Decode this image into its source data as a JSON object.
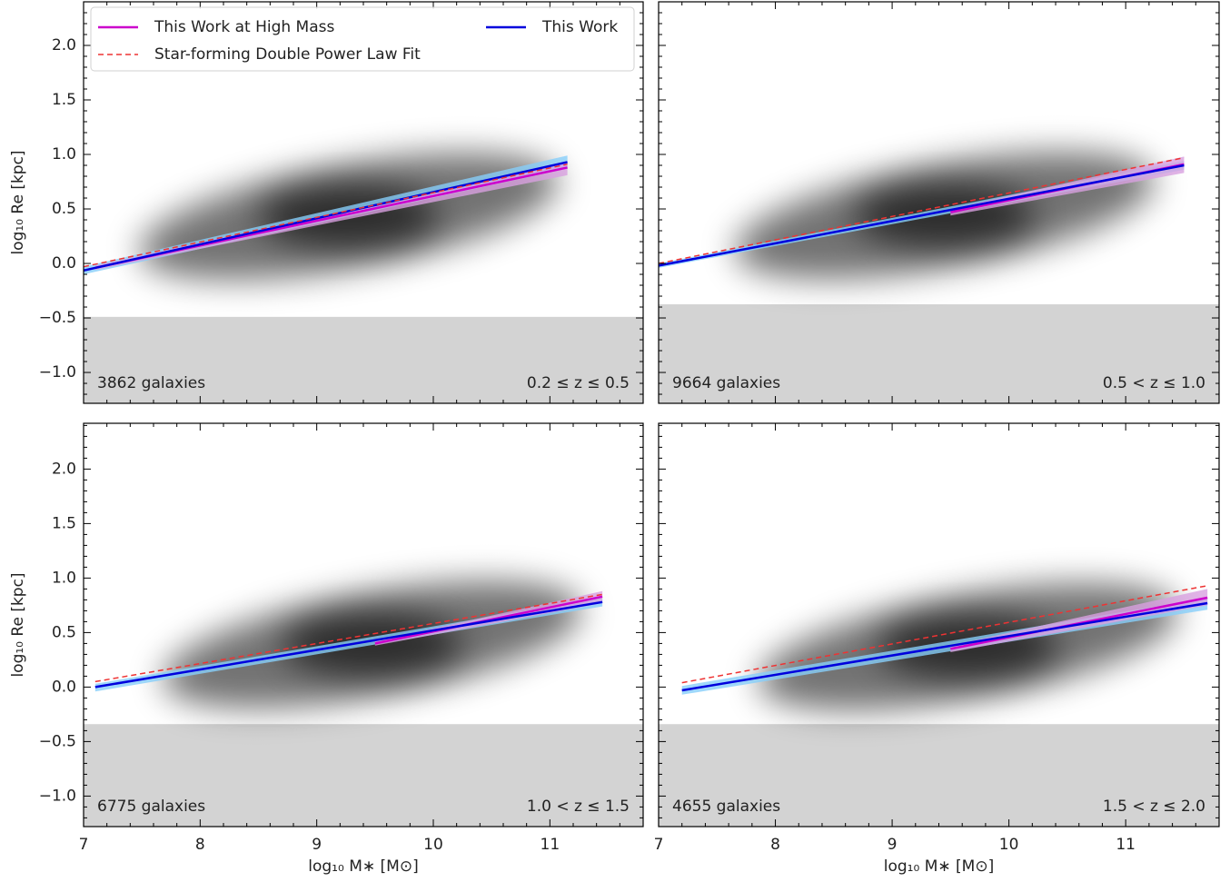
{
  "chart_data": [
    {
      "type": "line",
      "ylabel": "log₁₀ Re [kpc]",
      "xlim": [
        7,
        11.8
      ],
      "ylim": [
        -1.283,
        2.4
      ],
      "xticks": [
        7,
        8,
        9,
        10,
        11
      ],
      "yticks": [
        {
          "value": -1,
          "label": "−1.0"
        },
        {
          "value": -0.5,
          "label": "−0.5"
        },
        {
          "value": 0,
          "label": "0.0"
        },
        0.5,
        {
          "value": 1,
          "label": "1.0"
        },
        1.5,
        {
          "value": 2,
          "label": "2.0"
        }
      ],
      "shade_below": -0.49,
      "count_label": "3862 galaxies",
      "z_label": "0.2 ≤ z ≤ 0.5",
      "legend": "upper left",
      "series": [
        {
          "name": "This Work",
          "color": "#0000dd",
          "x": [
            7,
            11.15
          ],
          "values": [
            -0.065,
            0.93
          ],
          "lower": [
            -0.1,
            0.87
          ],
          "upper": [
            -0.03,
            0.99
          ],
          "band_color": "#87cefa"
        },
        {
          "name": "This Work at High Mass",
          "color": "#cc00cc",
          "x": [
            7.1,
            11.15
          ],
          "values": [
            -0.04,
            0.88
          ],
          "lower": [
            -0.06,
            0.81
          ],
          "upper": [
            -0.02,
            0.93
          ],
          "band_color": "#d8a0e0"
        },
        {
          "name": "Star-forming Double Power Law Fit",
          "color": "#ee3333",
          "style": "dashed",
          "x": [
            7,
            11.15
          ],
          "values": [
            -0.03,
            0.91
          ]
        }
      ]
    },
    {
      "type": "line",
      "xlim": [
        7,
        11.8
      ],
      "ylim": [
        -1.283,
        2.4
      ],
      "xticks": [
        7,
        8,
        9,
        10,
        11
      ],
      "yticks": [
        -1,
        -0.5,
        0,
        0.5,
        1,
        1.5,
        2
      ],
      "shade_below": -0.375,
      "count_label": "9664 galaxies",
      "z_label": "0.5 < z ≤ 1.0",
      "series": [
        {
          "color": "#0000dd",
          "x": [
            7,
            11.5
          ],
          "values": [
            -0.02,
            0.9
          ],
          "lower": [
            -0.04,
            0.86
          ],
          "upper": [
            0,
            0.94
          ],
          "band_color": "#87cefa"
        },
        {
          "color": "#cc00cc",
          "x": [
            9.5,
            11.5
          ],
          "values": [
            0.47,
            0.91
          ],
          "lower": [
            0.44,
            0.83
          ],
          "upper": [
            0.5,
            0.98
          ],
          "band_color": "#d8a0e0"
        },
        {
          "color": "#ee3333",
          "style": "dashed",
          "x": [
            7,
            11.5
          ],
          "values": [
            0,
            0.97
          ]
        }
      ]
    },
    {
      "type": "line",
      "ylabel": "log₁₀ Re [kpc]",
      "xlabel": "log₁₀ M∗ [M⊙]",
      "xlim": [
        7,
        11.8
      ],
      "ylim": [
        -1.28,
        2.42
      ],
      "xticks": [
        7,
        8,
        9,
        10,
        11
      ],
      "yticks": [
        {
          "value": -1,
          "label": "−1.0"
        },
        {
          "value": -0.5,
          "label": "−0.5"
        },
        {
          "value": 0,
          "label": "0.0"
        },
        0.5,
        {
          "value": 1,
          "label": "1.0"
        },
        1.5,
        {
          "value": 2,
          "label": "2.0"
        }
      ],
      "shade_below": -0.34,
      "count_label": "6775 galaxies",
      "z_label": "1.0 < z ≤ 1.5",
      "series": [
        {
          "color": "#0000dd",
          "x": [
            7.1,
            11.45
          ],
          "values": [
            0,
            0.78
          ],
          "lower": [
            -0.04,
            0.74
          ],
          "upper": [
            0.03,
            0.82
          ],
          "band_color": "#87cefa"
        },
        {
          "color": "#cc00cc",
          "x": [
            9.5,
            11.45
          ],
          "values": [
            0.4,
            0.83
          ],
          "lower": [
            0.38,
            0.77
          ],
          "upper": [
            0.42,
            0.88
          ],
          "band_color": "#d8a0e0"
        },
        {
          "color": "#ee3333",
          "style": "dashed",
          "x": [
            7.1,
            11.45
          ],
          "values": [
            0.05,
            0.85
          ]
        }
      ]
    },
    {
      "type": "line",
      "xlabel": "log₁₀ M∗ [M⊙]",
      "xlim": [
        7,
        11.8
      ],
      "ylim": [
        -1.28,
        2.42
      ],
      "xticks": [
        7,
        8,
        9,
        10,
        11
      ],
      "yticks": [
        -1,
        -0.5,
        0,
        0.5,
        1,
        1.5,
        2
      ],
      "shade_below": -0.34,
      "count_label": "4655 galaxies",
      "z_label": "1.5 < z ≤ 2.0",
      "series": [
        {
          "color": "#0000dd",
          "x": [
            7.2,
            11.7
          ],
          "values": [
            -0.03,
            0.77
          ],
          "lower": [
            -0.07,
            0.71
          ],
          "upper": [
            0.01,
            0.82
          ],
          "band_color": "#87cefa"
        },
        {
          "color": "#cc00cc",
          "x": [
            9.5,
            11.7
          ],
          "values": [
            0.35,
            0.82
          ],
          "lower": [
            0.32,
            0.75
          ],
          "upper": [
            0.38,
            0.9
          ],
          "band_color": "#d8a0e0"
        },
        {
          "color": "#ee3333",
          "style": "dashed",
          "x": [
            7.2,
            11.7
          ],
          "values": [
            0.04,
            0.93
          ]
        }
      ]
    }
  ]
}
